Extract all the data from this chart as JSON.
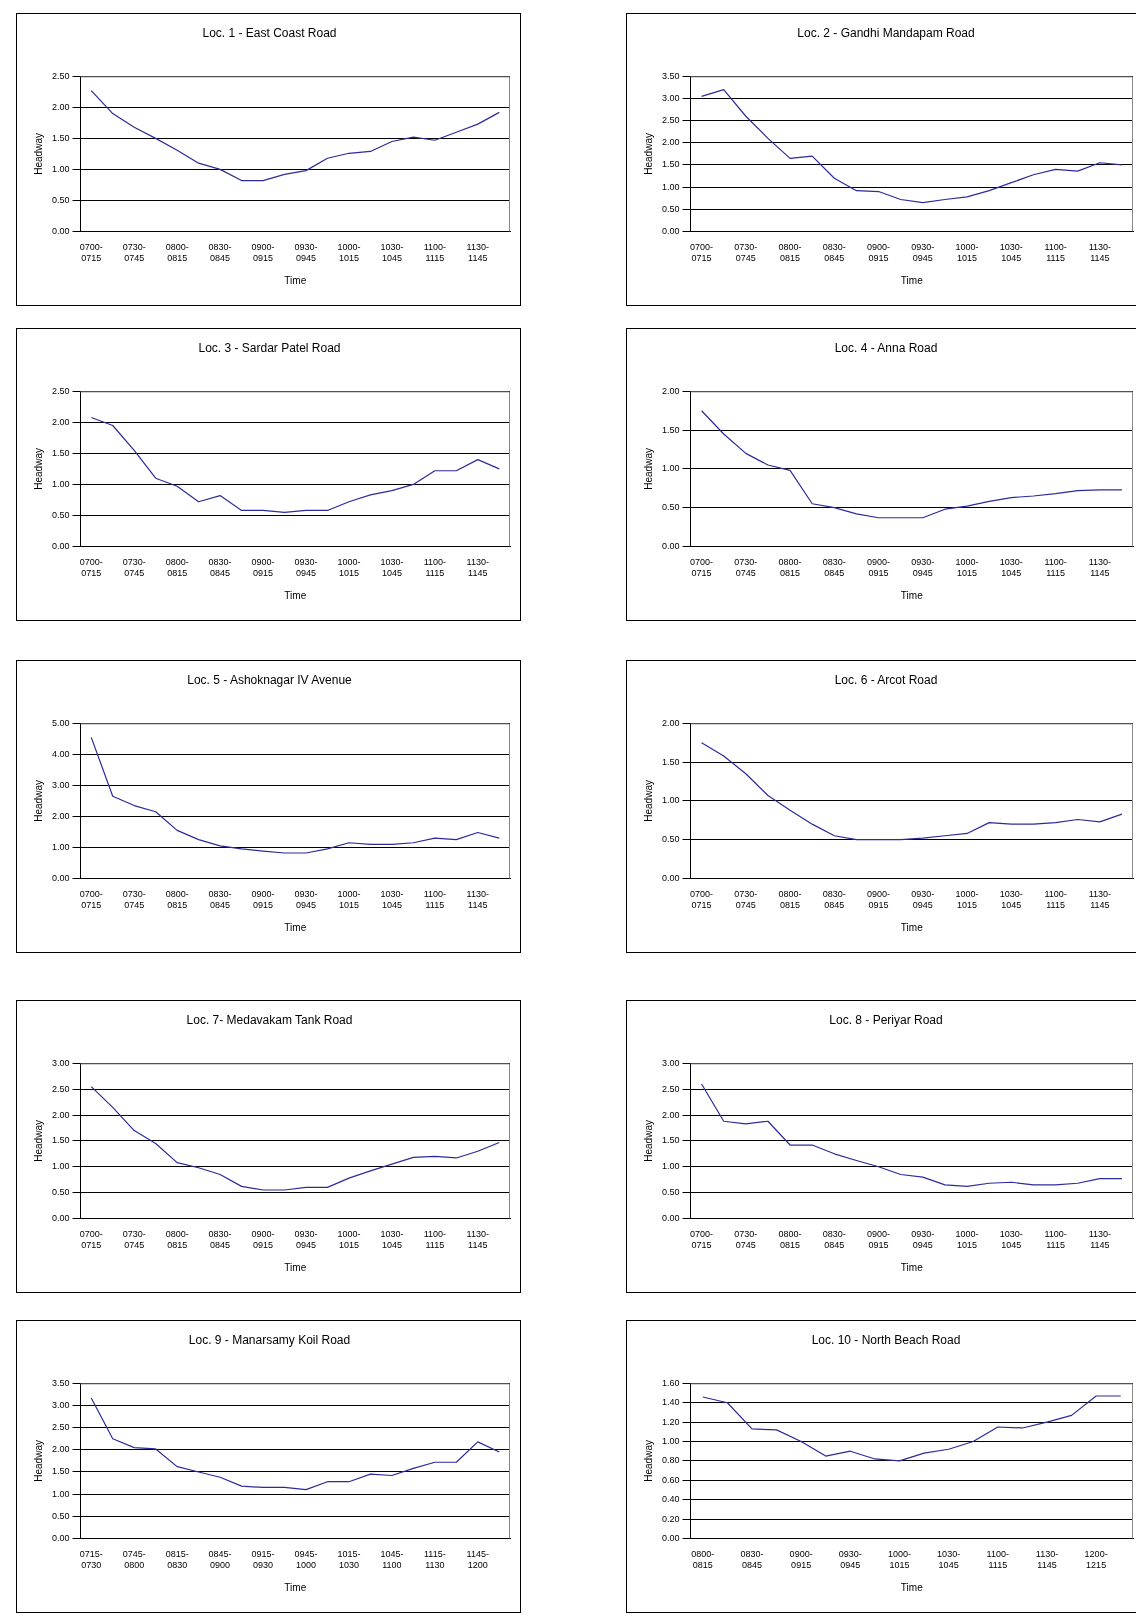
{
  "chart_data": [
    {
      "type": "line",
      "title": "Loc. 1 - East Coast Road",
      "xlabel": "Time",
      "ylabel": "Headway",
      "color": "#2b2b9c",
      "grid": "y",
      "legend": false,
      "marker": "none",
      "categories": [
        "0700-0715",
        null,
        "0730-0745",
        null,
        "0800-0815",
        null,
        "0830-0845",
        null,
        "0900-0915",
        null,
        "0930-0945",
        null,
        "1000-1015",
        null,
        "1030-1045",
        null,
        "1100-1115",
        null,
        "1130-1145",
        null
      ],
      "values": [
        2.27,
        1.9,
        1.68,
        1.5,
        1.31,
        1.1,
        1.0,
        0.82,
        0.82,
        0.92,
        0.98,
        1.18,
        1.26,
        1.29,
        1.45,
        1.52,
        1.47,
        1.6,
        1.73,
        1.92
      ],
      "ylim": [
        0,
        2.5
      ],
      "yticks": [
        {
          "value": 0,
          "label": "0.00"
        },
        {
          "value": 0.5,
          "label": "0.50"
        },
        {
          "value": 1,
          "label": "1.00"
        },
        {
          "value": 1.5,
          "label": "1.50"
        },
        {
          "value": 2,
          "label": "2.00"
        },
        {
          "value": 2.5,
          "label": "2.50"
        }
      ]
    },
    {
      "type": "line",
      "title": "Loc. 2 - Gandhi Mandapam Road",
      "xlabel": "Time",
      "ylabel": "Headway",
      "color": "#2b2b9c",
      "grid": "y",
      "legend": false,
      "marker": "none",
      "categories": [
        "0700-0715",
        null,
        "0730-0745",
        null,
        "0800-0815",
        null,
        "0830-0845",
        null,
        "0900-0915",
        null,
        "0930-0945",
        null,
        "1000-1015",
        null,
        "1030-1045",
        null,
        "1100-1115",
        null,
        "1130-1145",
        null
      ],
      "values": [
        3.05,
        3.2,
        2.6,
        2.1,
        1.65,
        1.7,
        1.2,
        0.92,
        0.9,
        0.72,
        0.65,
        0.72,
        0.78,
        0.92,
        1.1,
        1.28,
        1.4,
        1.36,
        1.55,
        1.5
      ],
      "ylim": [
        0,
        3.5
      ],
      "yticks": [
        {
          "value": 0,
          "label": "0.00"
        },
        {
          "value": 0.5,
          "label": "0.50"
        },
        {
          "value": 1,
          "label": "1.00"
        },
        {
          "value": 1.5,
          "label": "1.50"
        },
        {
          "value": 2,
          "label": "2.00"
        },
        {
          "value": 2.5,
          "label": "2.50"
        },
        {
          "value": 3,
          "label": "3.00"
        },
        {
          "value": 3.5,
          "label": "3.50"
        }
      ]
    },
    {
      "type": "line",
      "title": "Loc. 3 - Sardar Patel Road",
      "xlabel": "Time",
      "ylabel": "Headway",
      "color": "#2b2b9c",
      "grid": "y",
      "legend": false,
      "marker": "none",
      "categories": [
        "0700-0715",
        null,
        "0730-0745",
        null,
        "0800-0815",
        null,
        "0830-0845",
        null,
        "0900-0915",
        null,
        "0930-0945",
        null,
        "1000-1015",
        null,
        "1030-1045",
        null,
        "1100-1115",
        null,
        "1130-1145",
        null
      ],
      "values": [
        2.08,
        1.95,
        1.55,
        1.1,
        0.97,
        0.72,
        0.82,
        0.58,
        0.58,
        0.55,
        0.58,
        0.58,
        0.72,
        0.83,
        0.9,
        1.0,
        1.22,
        1.22,
        1.4,
        1.25
      ],
      "ylim": [
        0,
        2.5
      ],
      "yticks": [
        {
          "value": 0,
          "label": "0.00"
        },
        {
          "value": 0.5,
          "label": "0.50"
        },
        {
          "value": 1,
          "label": "1.00"
        },
        {
          "value": 1.5,
          "label": "1.50"
        },
        {
          "value": 2,
          "label": "2.00"
        },
        {
          "value": 2.5,
          "label": "2.50"
        }
      ]
    },
    {
      "type": "line",
      "title": "Loc. 4 - Anna Road",
      "xlabel": "Time",
      "ylabel": "Headway",
      "color": "#2b2b9c",
      "grid": "y",
      "legend": false,
      "marker": "none",
      "categories": [
        "0700-0715",
        null,
        "0730-0745",
        null,
        "0800-0815",
        null,
        "0830-0845",
        null,
        "0900-0915",
        null,
        "0930-0945",
        null,
        "1000-1015",
        null,
        "1030-1045",
        null,
        "1100-1115",
        null,
        "1130-1145",
        null
      ],
      "values": [
        1.75,
        1.45,
        1.2,
        1.05,
        0.98,
        0.55,
        0.5,
        0.42,
        0.37,
        0.37,
        0.37,
        0.48,
        0.52,
        0.58,
        0.63,
        0.65,
        0.68,
        0.72,
        0.73,
        0.73
      ],
      "ylim": [
        0,
        2
      ],
      "yticks": [
        {
          "value": 0,
          "label": "0.00"
        },
        {
          "value": 0.5,
          "label": "0.50"
        },
        {
          "value": 1,
          "label": "1.00"
        },
        {
          "value": 1.5,
          "label": "1.50"
        },
        {
          "value": 2,
          "label": "2.00"
        }
      ]
    },
    {
      "type": "line",
      "title": "Loc. 5 - Ashoknagar IV Avenue",
      "xlabel": "Time",
      "ylabel": "Headway",
      "color": "#2b2b9c",
      "grid": "y",
      "legend": false,
      "marker": "none",
      "categories": [
        "0700-0715",
        null,
        "0730-0745",
        null,
        "0800-0815",
        null,
        "0830-0845",
        null,
        "0900-0915",
        null,
        "0930-0945",
        null,
        "1000-1015",
        null,
        "1030-1045",
        null,
        "1100-1115",
        null,
        "1130-1145",
        null
      ],
      "values": [
        4.55,
        2.65,
        2.35,
        2.15,
        1.55,
        1.25,
        1.05,
        0.95,
        0.88,
        0.82,
        0.82,
        0.95,
        1.15,
        1.1,
        1.1,
        1.15,
        1.3,
        1.25,
        1.48,
        1.3
      ],
      "ylim": [
        0,
        5
      ],
      "yticks": [
        {
          "value": 0,
          "label": "0.00"
        },
        {
          "value": 1,
          "label": "1.00"
        },
        {
          "value": 2,
          "label": "2.00"
        },
        {
          "value": 3,
          "label": "3.00"
        },
        {
          "value": 4,
          "label": "4.00"
        },
        {
          "value": 5,
          "label": "5.00"
        }
      ]
    },
    {
      "type": "line",
      "title": "Loc. 6 - Arcot Road",
      "xlabel": "Time",
      "ylabel": "Headway",
      "color": "#2b2b9c",
      "grid": "y",
      "legend": false,
      "marker": "none",
      "categories": [
        "0700-0715",
        null,
        "0730-0745",
        null,
        "0800-0815",
        null,
        "0830-0845",
        null,
        "0900-0915",
        null,
        "0930-0945",
        null,
        "1000-1015",
        null,
        "1030-1045",
        null,
        "1100-1115",
        null,
        "1130-1145",
        null
      ],
      "values": [
        1.75,
        1.58,
        1.35,
        1.07,
        0.88,
        0.7,
        0.55,
        0.5,
        0.5,
        0.5,
        0.52,
        0.55,
        0.58,
        0.72,
        0.7,
        0.7,
        0.72,
        0.76,
        0.73,
        0.83
      ],
      "ylim": [
        0,
        2
      ],
      "yticks": [
        {
          "value": 0,
          "label": "0.00"
        },
        {
          "value": 0.5,
          "label": "0.50"
        },
        {
          "value": 1,
          "label": "1.00"
        },
        {
          "value": 1.5,
          "label": "1.50"
        },
        {
          "value": 2,
          "label": "2.00"
        }
      ]
    },
    {
      "type": "line",
      "title": "Loc. 7- Medavakam Tank Road",
      "xlabel": "Time",
      "ylabel": "Headway",
      "color": "#2b2b9c",
      "grid": "y",
      "legend": false,
      "marker": "none",
      "categories": [
        "0700-0715",
        null,
        "0730-0745",
        null,
        "0800-0815",
        null,
        "0830-0845",
        null,
        "0900-0915",
        null,
        "0930-0945",
        null,
        "1000-1015",
        null,
        "1030-1045",
        null,
        "1100-1115",
        null,
        "1130-1145",
        null
      ],
      "values": [
        2.55,
        2.15,
        1.7,
        1.45,
        1.08,
        0.98,
        0.85,
        0.62,
        0.55,
        0.55,
        0.6,
        0.6,
        0.78,
        0.92,
        1.05,
        1.18,
        1.2,
        1.17,
        1.3,
        1.47
      ],
      "ylim": [
        0,
        3
      ],
      "yticks": [
        {
          "value": 0,
          "label": "0.00"
        },
        {
          "value": 0.5,
          "label": "0.50"
        },
        {
          "value": 1,
          "label": "1.00"
        },
        {
          "value": 1.5,
          "label": "1.50"
        },
        {
          "value": 2,
          "label": "2.00"
        },
        {
          "value": 2.5,
          "label": "2.50"
        },
        {
          "value": 3,
          "label": "3.00"
        }
      ]
    },
    {
      "type": "line",
      "title": "Loc. 8 - Periyar Road",
      "xlabel": "Time",
      "ylabel": "Headway",
      "color": "#2b2b9c",
      "grid": "y",
      "legend": false,
      "marker": "none",
      "categories": [
        "0700-0715",
        null,
        "0730-0745",
        null,
        "0800-0815",
        null,
        "0830-0845",
        null,
        "0900-0915",
        null,
        "0930-0945",
        null,
        "1000-1015",
        null,
        "1030-1045",
        null,
        "1100-1115",
        null,
        "1130-1145",
        null
      ],
      "values": [
        2.6,
        1.88,
        1.83,
        1.88,
        1.42,
        1.42,
        1.25,
        1.12,
        1.0,
        0.85,
        0.8,
        0.65,
        0.62,
        0.68,
        0.7,
        0.65,
        0.65,
        0.68,
        0.77,
        0.77
      ],
      "ylim": [
        0,
        3
      ],
      "yticks": [
        {
          "value": 0,
          "label": "0.00"
        },
        {
          "value": 0.5,
          "label": "0.50"
        },
        {
          "value": 1,
          "label": "1.00"
        },
        {
          "value": 1.5,
          "label": "1.50"
        },
        {
          "value": 2,
          "label": "2.00"
        },
        {
          "value": 2.5,
          "label": "2.50"
        },
        {
          "value": 3,
          "label": "3.00"
        }
      ]
    },
    {
      "type": "line",
      "title": "Loc. 9 - Manarsamy Koil Road",
      "xlabel": "Time",
      "ylabel": "Headway",
      "color": "#2b2b9c",
      "grid": "y",
      "legend": false,
      "marker": "none",
      "categories": [
        "0715-0730",
        null,
        "0745-0800",
        null,
        "0815-0830",
        null,
        "0845-0900",
        null,
        "0915-0930",
        null,
        "0945-1000",
        null,
        "1015-1030",
        null,
        "1045-1100",
        null,
        "1115-1130",
        null,
        "1145-1200",
        null
      ],
      "values": [
        3.17,
        2.25,
        2.05,
        2.02,
        1.62,
        1.5,
        1.38,
        1.18,
        1.15,
        1.15,
        1.1,
        1.28,
        1.28,
        1.45,
        1.42,
        1.58,
        1.72,
        1.72,
        2.18,
        1.95
      ],
      "ylim": [
        0,
        3.5
      ],
      "yticks": [
        {
          "value": 0,
          "label": "0.00"
        },
        {
          "value": 0.5,
          "label": "0.50"
        },
        {
          "value": 1,
          "label": "1.00"
        },
        {
          "value": 1.5,
          "label": "1.50"
        },
        {
          "value": 2,
          "label": "2.00"
        },
        {
          "value": 2.5,
          "label": "2.50"
        },
        {
          "value": 3,
          "label": "3.00"
        },
        {
          "value": 3.5,
          "label": "3.50"
        }
      ]
    },
    {
      "type": "line",
      "title": "Loc. 10 - North Beach Road",
      "xlabel": "Time",
      "ylabel": "Headway",
      "color": "#2b2b9c",
      "grid": "y",
      "legend": false,
      "marker": "none",
      "categories": [
        "0800-0815",
        null,
        "0830-0845",
        null,
        "0900-0915",
        null,
        "0930-0945",
        null,
        "1000-1015",
        null,
        "1030-1045",
        null,
        "1100-1115",
        null,
        "1130-1145",
        null,
        "1200-1215",
        null
      ],
      "values": [
        1.46,
        1.4,
        1.13,
        1.12,
        1.0,
        0.85,
        0.9,
        0.82,
        0.8,
        0.88,
        0.92,
        1.0,
        1.15,
        1.14,
        1.2,
        1.27,
        1.47,
        1.47
      ],
      "ylim": [
        0,
        1.6
      ],
      "yticks": [
        {
          "value": 0,
          "label": "0.00"
        },
        {
          "value": 0.2,
          "label": "0.20"
        },
        {
          "value": 0.4,
          "label": "0.40"
        },
        {
          "value": 0.6,
          "label": "0.60"
        },
        {
          "value": 0.8,
          "label": "0.80"
        },
        {
          "value": 1,
          "label": "1.00"
        },
        {
          "value": 1.2,
          "label": "1.20"
        },
        {
          "value": 1.4,
          "label": "1.40"
        },
        {
          "value": 1.6,
          "label": "1.60"
        }
      ]
    }
  ]
}
